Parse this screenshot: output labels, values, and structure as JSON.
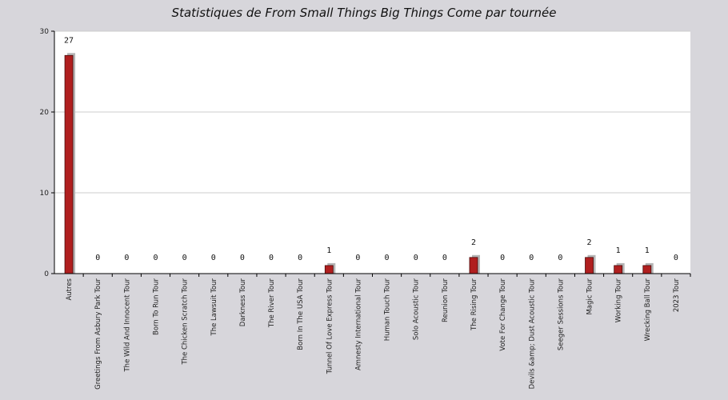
{
  "chart_data": {
    "type": "bar",
    "title": "Statistiques de From Small Things Big Things Come par tournée",
    "xlabel": "",
    "ylabel": "",
    "ylim": [
      0,
      30
    ],
    "yticks": [
      0,
      10,
      20,
      30
    ],
    "grid": true,
    "colors": {
      "background": "#d7d6db",
      "plot": "#ffffff",
      "bar": "#b01f1f",
      "bar_shadow": "#b5b5b5",
      "grid": "#cccccc",
      "axis": "#000000"
    },
    "categories": [
      "Autres",
      "Greetings From Asbury Park Tour",
      "The Wild And Innocent Tour",
      "Born To Run Tour",
      "The Chicken Scratch Tour",
      "The Lawsuit Tour",
      "Darkness Tour",
      "The River Tour",
      "Born In The USA Tour",
      "Tunnel Of Love Express Tour",
      "Amnesty International Tour",
      "Human Touch Tour",
      "Solo Acoustic Tour",
      "Reunion Tour",
      "The Rising Tour",
      "Vote For Change Tour",
      "Devils &amp; Dust Acoustic Tour",
      "Seeger Sessions Tour",
      "Magic Tour",
      "Working Tour",
      "Wrecking Ball Tour",
      "2023 Tour"
    ],
    "values": [
      27,
      0,
      0,
      0,
      0,
      0,
      0,
      0,
      0,
      1,
      0,
      0,
      0,
      0,
      2,
      0,
      0,
      0,
      2,
      1,
      1,
      0
    ]
  }
}
